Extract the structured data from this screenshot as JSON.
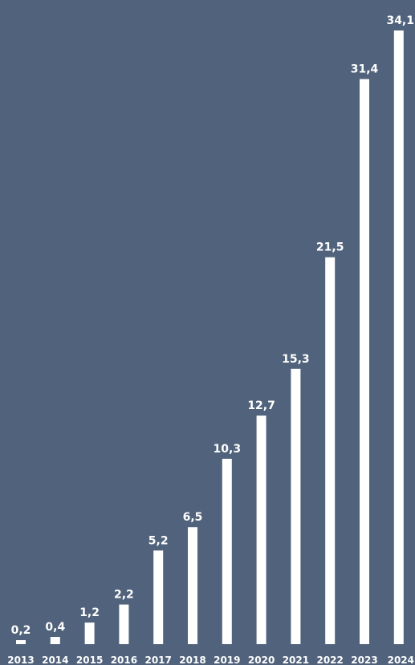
{
  "colors": {
    "background": "#51637c",
    "bar": "#ffffff",
    "label": "#ffffff"
  },
  "chart_data": {
    "type": "bar",
    "title": "",
    "xlabel": "",
    "ylabel": "",
    "categories": [
      "2013",
      "2014",
      "2015",
      "2016",
      "2017",
      "2018",
      "2019",
      "2020",
      "2021",
      "2022",
      "2023",
      "2024"
    ],
    "values": [
      0.2,
      0.4,
      1.2,
      2.2,
      5.2,
      6.5,
      10.3,
      12.7,
      15.3,
      21.5,
      31.4,
      34.1
    ],
    "value_labels": [
      "0,2",
      "0,4",
      "1,2",
      "2,2",
      "5,2",
      "6,5",
      "10,3",
      "12,7",
      "15,3",
      "21,5",
      "31,4",
      "34,1"
    ],
    "ylim": [
      0,
      34.1
    ],
    "grid": false,
    "legend": "none"
  }
}
